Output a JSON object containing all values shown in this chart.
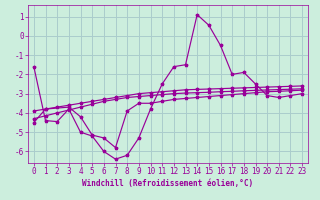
{
  "xlabel": "Windchill (Refroidissement éolien,°C)",
  "background_color": "#cceedd",
  "grid_color": "#aacccc",
  "line_color": "#990099",
  "x_ticks": [
    0,
    1,
    2,
    3,
    4,
    5,
    6,
    7,
    8,
    9,
    10,
    11,
    12,
    13,
    14,
    15,
    16,
    17,
    18,
    19,
    20,
    21,
    22,
    23
  ],
  "y_ticks": [
    -6,
    -5,
    -4,
    -3,
    -2,
    -1,
    0,
    1
  ],
  "xlim": [
    -0.5,
    23.5
  ],
  "ylim": [
    -6.6,
    1.6
  ],
  "line1_x": [
    0,
    1,
    2,
    3,
    4,
    5,
    6,
    7,
    8,
    9,
    10,
    11,
    12,
    13,
    14,
    15,
    16,
    17,
    18,
    19,
    20,
    21,
    22,
    23
  ],
  "line1_y": [
    -1.6,
    -4.4,
    -4.45,
    -3.8,
    -5.0,
    -5.2,
    -6.0,
    -6.4,
    -6.2,
    -5.3,
    -3.8,
    -2.5,
    -1.6,
    -1.5,
    1.1,
    0.55,
    -0.5,
    -2.0,
    -1.9,
    -2.5,
    -3.1,
    -3.2,
    -3.1,
    -3.0
  ],
  "line2_x": [
    0,
    1,
    3,
    4,
    5,
    6,
    7,
    8,
    9,
    10,
    11,
    12,
    13,
    14,
    15,
    16,
    17,
    18,
    19,
    20,
    21,
    22,
    23
  ],
  "line2_y": [
    -4.5,
    -3.8,
    -3.7,
    -4.2,
    -5.15,
    -5.3,
    -5.8,
    -3.9,
    -3.5,
    -3.5,
    -3.4,
    -3.3,
    -3.25,
    -3.2,
    -3.15,
    -3.1,
    -3.05,
    -3.0,
    -2.95,
    -2.9,
    -2.88,
    -2.85,
    -2.82
  ],
  "line3_x": [
    0,
    1,
    2,
    3,
    4,
    5,
    6,
    7,
    8,
    9,
    10,
    11,
    12,
    13,
    14,
    15,
    16,
    17,
    18,
    19,
    20,
    21,
    22,
    23
  ],
  "line3_y": [
    -4.3,
    -4.15,
    -4.0,
    -3.85,
    -3.7,
    -3.55,
    -3.4,
    -3.3,
    -3.2,
    -3.15,
    -3.1,
    -3.05,
    -3.0,
    -2.97,
    -2.95,
    -2.93,
    -2.9,
    -2.88,
    -2.85,
    -2.83,
    -2.81,
    -2.79,
    -2.77,
    -2.75
  ],
  "line4_x": [
    0,
    1,
    2,
    3,
    4,
    5,
    6,
    7,
    8,
    9,
    10,
    11,
    12,
    13,
    14,
    15,
    16,
    17,
    18,
    19,
    20,
    21,
    22,
    23
  ],
  "line4_y": [
    -3.9,
    -3.8,
    -3.7,
    -3.6,
    -3.5,
    -3.4,
    -3.3,
    -3.2,
    -3.1,
    -3.0,
    -2.95,
    -2.9,
    -2.85,
    -2.8,
    -2.78,
    -2.76,
    -2.74,
    -2.72,
    -2.7,
    -2.68,
    -2.66,
    -2.64,
    -2.62,
    -2.6
  ],
  "tick_fontsize": 5.5,
  "xlabel_fontsize": 5.5
}
